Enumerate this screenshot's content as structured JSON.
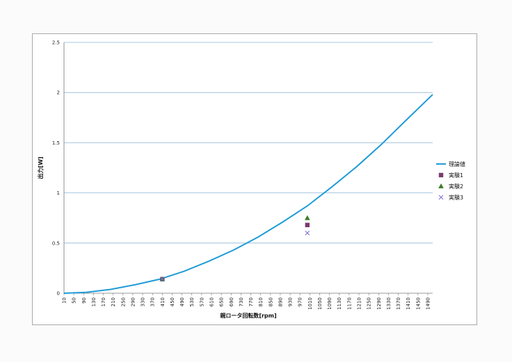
{
  "chart_data": {
    "type": "line",
    "title": "",
    "xlabel": "親ロータ回転数[rpm]",
    "ylabel": "出力[W]",
    "xlim": [
      10,
      1510
    ],
    "ylim": [
      0,
      2.5
    ],
    "x_ticks": [
      10,
      50,
      90,
      130,
      170,
      210,
      250,
      290,
      330,
      370,
      410,
      450,
      490,
      530,
      570,
      610,
      650,
      690,
      730,
      770,
      810,
      850,
      890,
      930,
      970,
      1010,
      1050,
      1090,
      1130,
      1170,
      1210,
      1250,
      1290,
      1330,
      1370,
      1410,
      1450,
      1490
    ],
    "y_ticks": [
      "0",
      "0.5",
      "1",
      "1.5",
      "2",
      "2.5"
    ],
    "grid": "horizontal",
    "legend_position": "right",
    "series": [
      {
        "name": "理論値",
        "kind": "line",
        "color": "#1f9bd7",
        "x": [
          10,
          100,
          200,
          300,
          400,
          500,
          600,
          700,
          800,
          900,
          1000,
          1100,
          1200,
          1300,
          1400,
          1510
        ],
        "y": [
          0.0,
          0.009,
          0.038,
          0.085,
          0.14,
          0.22,
          0.32,
          0.43,
          0.56,
          0.71,
          0.87,
          1.06,
          1.26,
          1.48,
          1.72,
          1.98
        ]
      },
      {
        "name": "実験1",
        "kind": "marker",
        "marker": "square",
        "color": "#7b3b6e",
        "x": [
          410,
          1000
        ],
        "y": [
          0.14,
          0.68
        ]
      },
      {
        "name": "実験2",
        "kind": "marker",
        "marker": "triangle",
        "color": "#3f7b2a",
        "x": [
          410,
          1000
        ],
        "y": [
          0.14,
          0.75
        ]
      },
      {
        "name": "実験3",
        "kind": "marker",
        "marker": "cross",
        "color": "#7a6fd6",
        "x": [
          410,
          1000
        ],
        "y": [
          0.14,
          0.6
        ]
      }
    ]
  }
}
